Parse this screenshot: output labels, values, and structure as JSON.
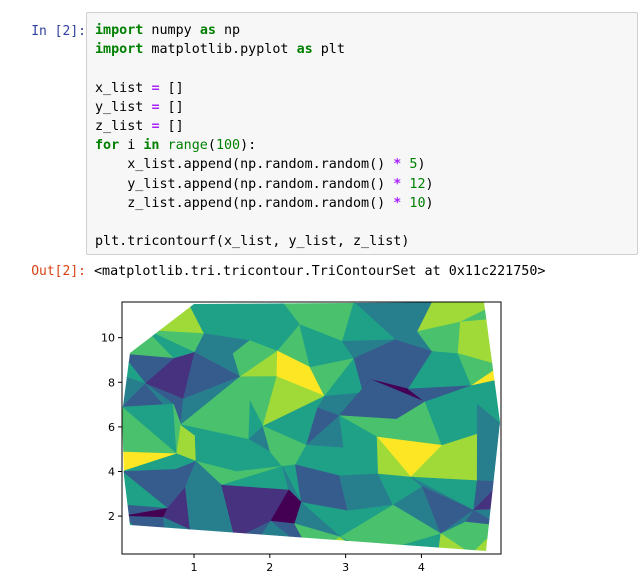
{
  "input_prompt": "In [2]:",
  "output_prompt": "Out[2]:",
  "output_text": "<matplotlib.tri.tricontour.TriContourSet at 0x11c221750>",
  "code": {
    "l1": {
      "k1": "import",
      "t1": " numpy ",
      "k2": "as",
      "t2": " np"
    },
    "l2": {
      "k1": "import",
      "t1": " matplotlib.pyplot ",
      "k2": "as",
      "t2": " plt"
    },
    "l3": {
      "t1": "x_list ",
      "o1": "=",
      "t2": " []"
    },
    "l4": {
      "t1": "y_list ",
      "o1": "=",
      "t2": " []"
    },
    "l5": {
      "t1": "z_list ",
      "o1": "=",
      "t2": " []"
    },
    "l6": {
      "k1": "for",
      "t1": " i ",
      "k2": "in",
      "t2": " ",
      "b1": "range",
      "t3": "(",
      "n1": "100",
      "t4": "):"
    },
    "l7": {
      "t1": "    x_list.append(np.random.random() ",
      "o1": "*",
      "t2": " ",
      "n1": "5",
      "t3": ")"
    },
    "l8": {
      "t1": "    y_list.append(np.random.random() ",
      "o1": "*",
      "t2": " ",
      "n1": "12",
      "t3": ")"
    },
    "l9": {
      "t1": "    z_list.append(np.random.random() ",
      "o1": "*",
      "t2": " ",
      "n1": "10",
      "t3": ")"
    },
    "l10": {
      "t1": "plt.tricontourf(x_list, y_list, z_list)"
    }
  },
  "chart_data": {
    "type": "heatmap",
    "title": "",
    "xlabel": "",
    "ylabel": "",
    "xlim": [
      0.05,
      5.05
    ],
    "ylim": [
      0.3,
      11.6
    ],
    "x_ticks": [
      "1",
      "2",
      "3",
      "4"
    ],
    "y_ticks": [
      "2",
      "4",
      "6",
      "8",
      "10"
    ],
    "colormap": "viridis",
    "levels": 8,
    "colors": [
      "#440154",
      "#46327e",
      "#365c8d",
      "#277f8e",
      "#1fa187",
      "#4ac16d",
      "#a0da39",
      "#fde725"
    ]
  }
}
